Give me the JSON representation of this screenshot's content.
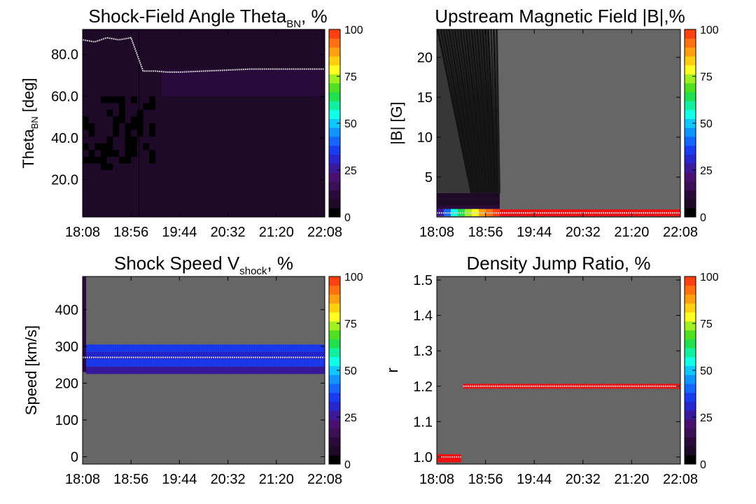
{
  "time_ticks": [
    "18:08",
    "18:56",
    "19:44",
    "20:32",
    "21:20",
    "22:08"
  ],
  "colorbar": {
    "ticks": [
      "0",
      "25",
      "50",
      "75",
      "100"
    ],
    "colors": [
      "#000000",
      "#1e0a28",
      "#2a0a3a",
      "#3b0f55",
      "#4a1070",
      "#3a1a9a",
      "#2626cc",
      "#1a3cf0",
      "#1466ff",
      "#0f94ff",
      "#0fc8ff",
      "#10ffe6",
      "#10f0a0",
      "#20e050",
      "#50e020",
      "#a0f020",
      "#ffff20",
      "#ffd010",
      "#ffa010",
      "#ff7010",
      "#ff4010"
    ]
  },
  "chart_data": [
    {
      "type": "heatmap",
      "title": "Shock-Field Angle Theta",
      "title_sub": "BN",
      "title_suffix": ", %",
      "ylabel": "Theta",
      "ylabel_sub": "BN",
      "ylabel_suffix": " [deg]",
      "ylim": [
        2,
        92
      ],
      "yticks": [
        "20.0",
        "40.0",
        "60.0",
        "80.0"
      ],
      "ytick_values": [
        20,
        40,
        60,
        80
      ],
      "background": "#2a1030",
      "median_line": {
        "x": [
          "18:08",
          "18:20",
          "18:32",
          "18:44",
          "18:56",
          "19:08",
          "19:20",
          "19:32",
          "19:44",
          "20:08",
          "20:32",
          "20:56",
          "21:20",
          "21:44",
          "22:08"
        ],
        "y": [
          87,
          86,
          88,
          87,
          88,
          72,
          72,
          71.5,
          71.5,
          72,
          72.5,
          73,
          73,
          73,
          73
        ]
      }
    },
    {
      "type": "heatmap",
      "title": "Upstream Magnetic Field |B|,%",
      "ylabel": "|B| [G]",
      "ylim": [
        0,
        23.5
      ],
      "yticks": [
        "5",
        "10",
        "15",
        "20"
      ],
      "ytick_values": [
        5,
        10,
        15,
        20
      ],
      "background": "#666666",
      "median_value": 0.5,
      "median_line": {
        "x": [
          "18:08",
          "22:08"
        ],
        "y": [
          0.5,
          0.5
        ]
      }
    },
    {
      "type": "heatmap",
      "title": "Shock Speed V",
      "title_sub": "shock",
      "title_suffix": ", %",
      "ylabel": "Speed [km/s]",
      "ylim": [
        -20,
        490
      ],
      "yticks": [
        "0",
        "100",
        "200",
        "300",
        "400"
      ],
      "ytick_values": [
        0,
        100,
        200,
        300,
        400
      ],
      "background": "#666666",
      "median_line": {
        "x": [
          "18:08",
          "22:08"
        ],
        "y": [
          270,
          270
        ]
      }
    },
    {
      "type": "heatmap",
      "title": "Density Jump Ratio, %",
      "ylabel": "r",
      "ylim": [
        0.98,
        1.51
      ],
      "yticks": [
        "1.0",
        "1.1",
        "1.2",
        "1.3",
        "1.4",
        "1.5"
      ],
      "ytick_values": [
        1.0,
        1.1,
        1.2,
        1.3,
        1.4,
        1.5
      ],
      "background": "#666666",
      "median_line": {
        "x": [
          "18:34",
          "22:08"
        ],
        "y": [
          1.2,
          1.2
        ]
      },
      "median_line_early": {
        "x": [
          "18:08",
          "18:32"
        ],
        "y": [
          1.0,
          1.0
        ]
      }
    }
  ]
}
